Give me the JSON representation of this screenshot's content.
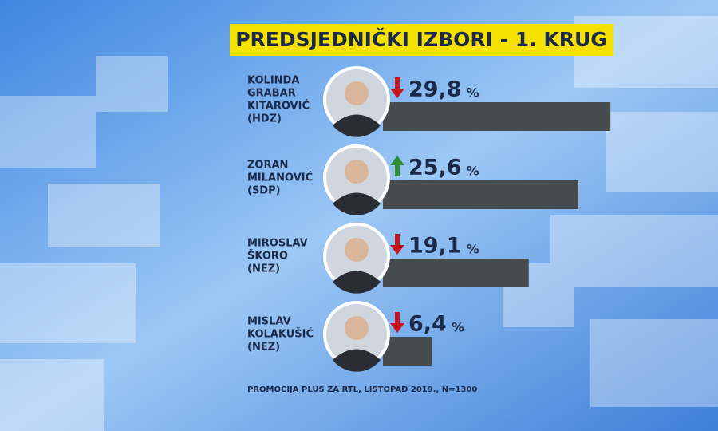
{
  "chart_data": {
    "type": "bar",
    "orientation": "horizontal",
    "title": "PREDSJEDNIČKI IZBORI - 1. KRUG",
    "categories": [
      [
        "KOLINDA",
        "GRABAR",
        "KITAROVIĆ",
        "(HDZ)"
      ],
      [
        "ZORAN",
        "MILANOVIĆ",
        "(SDP)"
      ],
      [
        "MIROSLAV",
        "ŠKORO",
        "(NEZ)"
      ],
      [
        "MISLAV",
        "KOLAKUŠIĆ",
        "(NEZ)"
      ]
    ],
    "values": [
      29.8,
      25.6,
      19.1,
      6.4
    ],
    "value_labels": [
      "29,8",
      "25,6",
      "19,1",
      "6,4"
    ],
    "unit": "%",
    "trends": [
      "down",
      "up",
      "down",
      "down"
    ],
    "trend_colors": {
      "down": "#c8141c",
      "up": "#2f8f2f"
    },
    "color": "#464b4e",
    "source": "PROMOCIJA PLUS ZA RTL, LISTOPAD 2019., N=1300"
  }
}
